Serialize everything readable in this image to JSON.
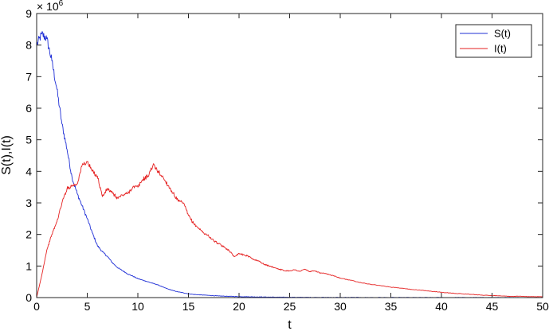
{
  "chart_data": {
    "type": "line",
    "xlabel": "t",
    "ylabel": "S(t),I(t)",
    "y_exponent_base": "× 10",
    "y_exponent_power": "6",
    "xlim": [
      0,
      50
    ],
    "ylim": [
      0,
      9
    ],
    "x_ticks": [
      "0",
      "5",
      "10",
      "15",
      "20",
      "25",
      "30",
      "35",
      "40",
      "45",
      "50"
    ],
    "y_ticks": [
      "0",
      "1",
      "2",
      "3",
      "4",
      "5",
      "6",
      "7",
      "8",
      "9"
    ],
    "grid": false,
    "legend_position": "top-right",
    "x": [
      0,
      0.5,
      1,
      1.5,
      2,
      2.5,
      3,
      3.5,
      4,
      4.5,
      5,
      5.5,
      6,
      6.5,
      7,
      7.5,
      8,
      8.5,
      9,
      9.5,
      10,
      10.5,
      11,
      11.5,
      12,
      12.5,
      13,
      13.5,
      14,
      14.5,
      15,
      15.5,
      16,
      16.5,
      17,
      17.5,
      18,
      18.5,
      19,
      19.5,
      20,
      20.5,
      21,
      21.5,
      22,
      22.5,
      23,
      23.5,
      24,
      24.5,
      25,
      25.5,
      26,
      26.5,
      27,
      27.5,
      28,
      28.5,
      29,
      29.5,
      30,
      31,
      32,
      33,
      34,
      35,
      36,
      37,
      38,
      39,
      40,
      41,
      42,
      43,
      44,
      45,
      46,
      47,
      48,
      49,
      50
    ],
    "series": [
      {
        "name": "S(t)",
        "color": "#1f2fd6",
        "values": [
          8.0,
          8.35,
          8.2,
          7.5,
          6.6,
          5.5,
          4.7,
          3.8,
          3.3,
          2.9,
          2.5,
          2.05,
          1.65,
          1.45,
          1.3,
          1.1,
          0.95,
          0.85,
          0.75,
          0.68,
          0.6,
          0.55,
          0.5,
          0.45,
          0.4,
          0.33,
          0.27,
          0.22,
          0.18,
          0.15,
          0.12,
          0.1,
          0.09,
          0.08,
          0.07,
          0.06,
          0.05,
          0.045,
          0.04,
          0.035,
          0.03,
          0.028,
          0.025,
          0.022,
          0.02,
          0.018,
          0.016,
          0.014,
          0.012,
          0.011,
          0.01,
          0.009,
          0.008,
          0.007,
          0.007,
          0.006,
          0.006,
          0.005,
          0.005,
          0.005,
          0.004,
          0.004,
          0.003,
          0.003,
          0.003,
          0.002,
          0.002,
          0.002,
          0.002,
          0.001,
          0.001,
          0.001,
          0.001,
          0.001,
          0.001,
          0.001,
          0.001,
          0.0,
          0.0,
          0.0,
          0.0
        ]
      },
      {
        "name": "I(t)",
        "color": "#e52020",
        "values": [
          0.0,
          0.7,
          1.5,
          2.0,
          2.4,
          3.0,
          3.45,
          3.55,
          3.6,
          4.2,
          4.3,
          4.0,
          3.85,
          3.2,
          3.45,
          3.3,
          3.15,
          3.25,
          3.3,
          3.5,
          3.5,
          3.75,
          3.85,
          4.2,
          4.0,
          3.8,
          3.55,
          3.3,
          3.05,
          3.0,
          2.6,
          2.35,
          2.2,
          2.05,
          1.95,
          1.8,
          1.7,
          1.6,
          1.5,
          1.3,
          1.4,
          1.35,
          1.3,
          1.2,
          1.15,
          1.05,
          1.0,
          0.95,
          0.9,
          0.85,
          0.85,
          0.88,
          0.83,
          0.9,
          0.82,
          0.85,
          0.78,
          0.76,
          0.72,
          0.68,
          0.62,
          0.55,
          0.48,
          0.42,
          0.38,
          0.33,
          0.3,
          0.26,
          0.23,
          0.2,
          0.17,
          0.14,
          0.12,
          0.1,
          0.08,
          0.06,
          0.05,
          0.04,
          0.04,
          0.03,
          0.03
        ]
      }
    ]
  }
}
